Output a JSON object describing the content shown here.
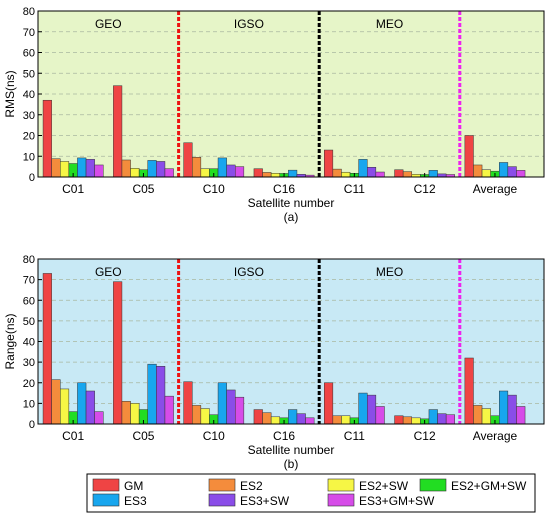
{
  "chart_data": [
    {
      "type": "bar",
      "panel_label": "(a)",
      "xlabel": "Satellite number",
      "ylabel": "RMS(ns)",
      "ylim": [
        0,
        80
      ],
      "yticks": [
        0,
        10,
        20,
        30,
        40,
        50,
        60,
        70,
        80
      ],
      "grid": true,
      "background": "#e6f5c8",
      "categories": [
        "C01",
        "C05",
        "C10",
        "C16",
        "C11",
        "C12",
        "Average"
      ],
      "regions": [
        "GEO",
        "IGSO",
        "MEO"
      ],
      "series": [
        {
          "name": "GM",
          "color": "#ef4444",
          "values": [
            37.0,
            44.0,
            16.5,
            4.0,
            13.0,
            3.5,
            20.0
          ]
        },
        {
          "name": "ES2",
          "color": "#f48c3c",
          "values": [
            8.8,
            8.2,
            9.5,
            2.2,
            3.8,
            2.6,
            5.8
          ]
        },
        {
          "name": "ES2+SW",
          "color": "#f6f645",
          "values": [
            7.5,
            4.2,
            4.0,
            1.8,
            2.3,
            1.3,
            3.5
          ]
        },
        {
          "name": "ES2+GM+SW",
          "color": "#22dd22",
          "values": [
            6.5,
            3.5,
            4.0,
            1.7,
            1.8,
            1.2,
            2.8
          ]
        },
        {
          "name": "ES3",
          "color": "#18a6ee",
          "values": [
            9.2,
            8.0,
            9.2,
            3.3,
            8.5,
            3.2,
            7.0
          ]
        },
        {
          "name": "ES3+SW",
          "color": "#8a4de8",
          "values": [
            8.5,
            7.5,
            5.8,
            1.3,
            4.7,
            1.5,
            5.0
          ]
        },
        {
          "name": "ES3+GM+SW",
          "color": "#d64ce8",
          "values": [
            5.8,
            4.0,
            5.0,
            0.9,
            2.4,
            1.2,
            3.2
          ]
        }
      ]
    },
    {
      "type": "bar",
      "panel_label": "(b)",
      "xlabel": "Satellite number",
      "ylabel": "Range(ns)",
      "ylim": [
        0,
        80
      ],
      "yticks": [
        0,
        10,
        20,
        30,
        40,
        50,
        60,
        70,
        80
      ],
      "grid": true,
      "background": "#c8e9f5",
      "categories": [
        "C01",
        "C05",
        "C10",
        "C16",
        "C11",
        "C12",
        "Average"
      ],
      "regions": [
        "GEO",
        "IGSO",
        "MEO"
      ],
      "series": [
        {
          "name": "GM",
          "color": "#ef4444",
          "values": [
            73.0,
            69.0,
            20.5,
            7.0,
            20.0,
            4.0,
            32.0
          ]
        },
        {
          "name": "ES2",
          "color": "#f48c3c",
          "values": [
            21.5,
            11.0,
            9.0,
            5.5,
            4.0,
            3.5,
            9.0
          ]
        },
        {
          "name": "ES2+SW",
          "color": "#f6f645",
          "values": [
            17.0,
            10.0,
            7.5,
            3.5,
            4.0,
            3.0,
            7.5
          ]
        },
        {
          "name": "ES2+GM+SW",
          "color": "#22dd22",
          "values": [
            6.0,
            7.0,
            4.5,
            3.0,
            3.0,
            2.5,
            4.0
          ]
        },
        {
          "name": "ES3",
          "color": "#18a6ee",
          "values": [
            20.0,
            29.0,
            20.0,
            7.0,
            15.0,
            7.0,
            16.0
          ]
        },
        {
          "name": "ES3+SW",
          "color": "#8a4de8",
          "values": [
            16.0,
            28.0,
            16.5,
            5.0,
            14.0,
            5.0,
            14.0
          ]
        },
        {
          "name": "ES3+GM+SW",
          "color": "#d64ce8",
          "values": [
            6.0,
            13.5,
            13.0,
            3.0,
            8.5,
            4.5,
            8.5
          ]
        }
      ]
    }
  ],
  "legend": [
    {
      "name": "GM",
      "color": "#ef4444"
    },
    {
      "name": "ES2",
      "color": "#f48c3c"
    },
    {
      "name": "ES2+SW",
      "color": "#f6f645"
    },
    {
      "name": "ES2+GM+SW",
      "color": "#22dd22"
    },
    {
      "name": "ES3",
      "color": "#18a6ee"
    },
    {
      "name": "ES3+SW",
      "color": "#8a4de8"
    },
    {
      "name": "ES3+GM+SW",
      "color": "#d64ce8"
    }
  ],
  "separator_colors": [
    "#ee1111",
    "#000000",
    "#ee22ee"
  ]
}
